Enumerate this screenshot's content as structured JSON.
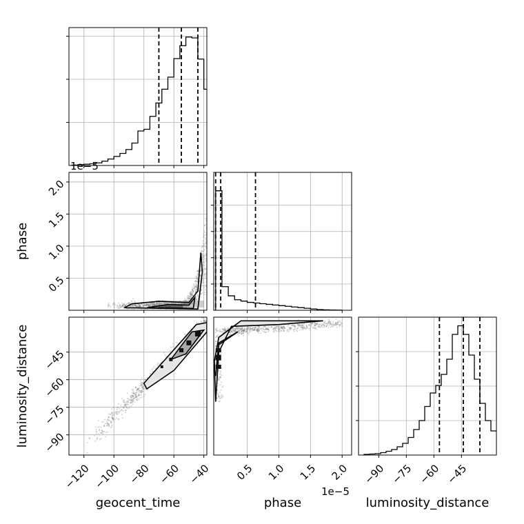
{
  "chart_data": {
    "type": "corner",
    "parameters": [
      "geocent_time",
      "phase",
      "luminosity_distance"
    ],
    "offset_text": "1e−5",
    "grid": true,
    "colors": {
      "line": "#000000",
      "grid": "#b0b0b0",
      "scatter": "#555555"
    },
    "panels": [
      {
        "id": "hist-geocent_time",
        "type": "histogram",
        "row": 0,
        "col": 0,
        "xlim": [
          -130,
          -38
        ],
        "ylim": [
          0,
          32
        ],
        "xticks": [
          -120,
          -100,
          -80,
          -60,
          -40
        ],
        "bin_edges": [
          -128,
          -124,
          -120,
          -116,
          -112,
          -108,
          -104,
          -100,
          -96,
          -92,
          -88,
          -84,
          -80,
          -76,
          -72,
          -68,
          -64,
          -60,
          -56,
          -52,
          -48,
          -44,
          -40,
          -38
        ],
        "counts": [
          0.1,
          0.2,
          0.3,
          0.4,
          0.6,
          1.0,
          1.5,
          2.1,
          2.8,
          3.7,
          5.2,
          8.0,
          8.4,
          11.4,
          14.5,
          17.7,
          20.5,
          24.8,
          27.8,
          29.8,
          29.6,
          24.7,
          17.7
        ],
        "quantile_lines": [
          -70,
          -55,
          -44
        ],
        "ytick_values": [
          10,
          20,
          30
        ]
      },
      {
        "id": "scatter-phase-vs-geocent_time",
        "type": "2d-density",
        "row": 1,
        "col": 0,
        "x_param": "geocent_time",
        "y_param": "phase",
        "xlim": [
          -130,
          -38
        ],
        "ylim": [
          0,
          2.15
        ],
        "xticks": [
          -120,
          -100,
          -80,
          -60,
          -40
        ],
        "yticks": [
          0.5,
          1.0,
          1.5,
          2.0
        ],
        "ytick_labels": [
          "0.5",
          "1.0",
          "1.5",
          "2.0"
        ]
      },
      {
        "id": "hist-phase",
        "type": "histogram",
        "row": 1,
        "col": 1,
        "xlim": [
          -0.03,
          2.15
        ],
        "ylim": [
          0,
          1.05
        ],
        "xticks": [
          0.5,
          1.0,
          1.5,
          2.0
        ],
        "bin_edges": [
          0.0,
          0.1,
          0.2,
          0.3,
          0.4,
          0.5,
          0.6,
          0.7,
          0.8,
          0.9,
          1.0,
          1.1,
          1.2,
          1.3,
          1.4,
          1.5,
          1.6,
          1.7,
          1.8,
          1.9,
          2.0
        ],
        "counts": [
          0.91,
          0.18,
          0.11,
          0.08,
          0.07,
          0.06,
          0.055,
          0.05,
          0.045,
          0.04,
          0.035,
          0.03,
          0.025,
          0.02,
          0.015,
          0.01,
          0.005,
          0.003,
          0.002,
          0.001
        ],
        "quantile_lines": [
          0.0,
          0.08,
          0.63
        ],
        "ytick_values": [
          0.2,
          0.4,
          0.6,
          0.8
        ]
      },
      {
        "id": "scatter-ld-vs-geocent_time",
        "type": "2d-density",
        "row": 2,
        "col": 0,
        "x_param": "geocent_time",
        "y_param": "luminosity_distance",
        "xlim": [
          -130,
          -38
        ],
        "ylim": [
          -101,
          -26
        ],
        "xticks": [
          -120,
          -100,
          -80,
          -60,
          -40
        ],
        "xtick_labels": [
          "−120",
          "−100",
          "−80",
          "−60",
          "−40"
        ],
        "yticks": [
          -90,
          -75,
          -60,
          -45
        ],
        "ytick_labels": [
          "−90",
          "−75",
          "−60",
          "−45"
        ]
      },
      {
        "id": "scatter-ld-vs-phase",
        "type": "2d-density",
        "row": 2,
        "col": 1,
        "x_param": "phase",
        "y_param": "luminosity_distance",
        "xlim": [
          -0.03,
          2.15
        ],
        "ylim": [
          -101,
          -26
        ],
        "xticks": [
          0.5,
          1.0,
          1.5,
          2.0
        ],
        "xtick_labels": [
          "0.5",
          "1.0",
          "1.5",
          "2.0"
        ]
      },
      {
        "id": "hist-luminosity_distance",
        "type": "histogram",
        "row": 2,
        "col": 2,
        "xlim": [
          -101,
          -26
        ],
        "ylim": [
          0,
          40
        ],
        "xticks": [
          -90,
          -75,
          -60,
          -45
        ],
        "xtick_labels": [
          "−90",
          "−75",
          "−60",
          "−45"
        ],
        "bin_edges": [
          -98,
          -95,
          -92,
          -89,
          -86,
          -83,
          -80,
          -77,
          -74,
          -71,
          -68,
          -65,
          -62,
          -59,
          -56,
          -53,
          -50,
          -47,
          -44,
          -41,
          -38,
          -35,
          -32,
          -29,
          -26
        ],
        "counts": [
          0.2,
          0.3,
          0.4,
          0.7,
          1.1,
          1.6,
          2.4,
          3.4,
          5.1,
          7.4,
          10.0,
          14.1,
          18.0,
          20.2,
          23.4,
          27.8,
          35.0,
          37.5,
          35.0,
          29.0,
          22.0,
          15.0,
          10.0,
          7.0
        ],
        "quantile_lines": [
          -57,
          -44,
          -35
        ],
        "ytick_values": [
          10,
          20,
          30
        ]
      }
    ]
  }
}
